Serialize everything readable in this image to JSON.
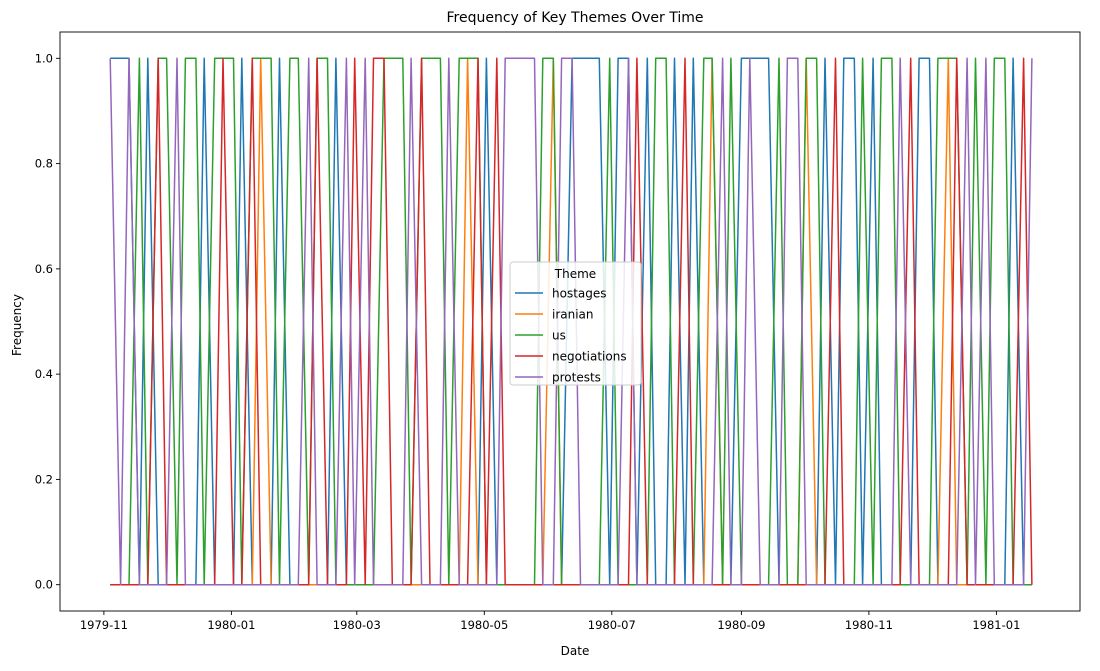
{
  "chart_data": {
    "type": "line",
    "title": "Frequency of Key Themes Over Time",
    "xlabel": "Date",
    "ylabel": "Frequency",
    "xlim": [
      "1979-10-11",
      "1981-02-10"
    ],
    "ylim": [
      -0.05,
      1.05
    ],
    "x_ticks": [
      "1979-11",
      "1980-01",
      "1980-03",
      "1980-05",
      "1980-07",
      "1980-09",
      "1980-11",
      "1981-01"
    ],
    "y_ticks": [
      "0.0",
      "0.2",
      "0.4",
      "0.6",
      "0.8",
      "1.0"
    ],
    "grid": false,
    "legend": {
      "title": "Theme",
      "placement": "center"
    },
    "x": [
      "1979-11-04",
      "1979-11-09",
      "1979-11-13",
      "1979-11-18",
      "1979-11-22",
      "1979-11-27",
      "1979-12-01",
      "1979-12-06",
      "1979-12-10",
      "1979-12-15",
      "1979-12-19",
      "1979-12-24",
      "1979-12-28",
      "1980-01-02",
      "1980-01-06",
      "1980-01-11",
      "1980-01-15",
      "1980-01-20",
      "1980-01-24",
      "1980-01-29",
      "1980-02-02",
      "1980-02-07",
      "1980-02-11",
      "1980-02-16",
      "1980-02-20",
      "1980-02-25",
      "1980-02-29",
      "1980-03-05",
      "1980-03-09",
      "1980-03-14",
      "1980-03-18",
      "1980-03-23",
      "1980-03-27",
      "1980-04-01",
      "1980-04-05",
      "1980-04-10",
      "1980-04-14",
      "1980-04-19",
      "1980-04-23",
      "1980-04-28",
      "1980-05-02",
      "1980-05-07",
      "1980-05-11",
      "1980-05-16",
      "1980-05-20",
      "1980-05-25",
      "1980-05-29",
      "1980-06-03",
      "1980-06-07",
      "1980-06-12",
      "1980-06-16",
      "1980-06-21",
      "1980-06-25",
      "1980-06-30",
      "1980-07-04",
      "1980-07-09",
      "1980-07-13",
      "1980-07-18",
      "1980-07-22",
      "1980-07-27",
      "1980-07-31",
      "1980-08-05",
      "1980-08-09",
      "1980-08-14",
      "1980-08-18",
      "1980-08-23",
      "1980-08-27",
      "1980-09-01",
      "1980-09-05",
      "1980-09-10",
      "1980-09-14",
      "1980-09-19",
      "1980-09-23",
      "1980-09-28",
      "1980-10-02",
      "1980-10-07",
      "1980-10-11",
      "1980-10-16",
      "1980-10-20",
      "1980-10-25",
      "1980-10-29",
      "1980-11-03",
      "1980-11-07",
      "1980-11-12",
      "1980-11-16",
      "1980-11-21",
      "1980-11-25",
      "1980-11-30",
      "1980-12-04",
      "1980-12-09",
      "1980-12-13",
      "1980-12-18",
      "1980-12-22",
      "1980-12-27",
      "1980-12-31",
      "1981-01-05",
      "1981-01-09",
      "1981-01-14",
      "1981-01-18"
    ],
    "series": [
      {
        "name": "hostages",
        "color": "#1f77b4",
        "values": [
          1,
          1,
          1,
          0,
          1,
          0,
          0,
          0,
          0,
          0,
          1,
          0,
          0,
          0,
          1,
          0,
          0,
          0,
          1,
          0,
          0,
          0,
          0,
          0,
          1,
          0,
          0,
          0,
          0,
          0,
          0,
          0,
          0,
          0,
          0,
          0,
          0,
          0,
          0,
          0,
          1,
          0,
          0,
          0,
          0,
          0,
          0,
          0,
          0,
          1,
          1,
          1,
          1,
          0,
          1,
          1,
          0,
          1,
          0,
          0,
          1,
          0,
          1,
          0,
          0,
          0,
          0,
          1,
          1,
          1,
          1,
          0,
          0,
          0,
          0,
          0,
          1,
          0,
          1,
          1,
          0,
          1,
          0,
          0,
          0,
          0,
          1,
          1,
          0,
          0,
          0,
          0,
          0,
          0,
          0,
          0,
          1,
          0,
          0
        ]
      },
      {
        "name": "iranian",
        "color": "#ff7f0e",
        "values": [
          0,
          0,
          0,
          0,
          0,
          0,
          0,
          0,
          0,
          0,
          0,
          0,
          0,
          0,
          0,
          0,
          1,
          0,
          0,
          0,
          0,
          0,
          0,
          0,
          0,
          0,
          0,
          0,
          0,
          0,
          0,
          0,
          0,
          0,
          0,
          0,
          0,
          0,
          1,
          0,
          0,
          0,
          0,
          0,
          0,
          0,
          0,
          1,
          0,
          0,
          0,
          0,
          0,
          0,
          0,
          0,
          0,
          0,
          0,
          0,
          0,
          0,
          0,
          0,
          1,
          0,
          0,
          0,
          0,
          0,
          0,
          0,
          0,
          0,
          1,
          0,
          0,
          0,
          0,
          0,
          0,
          0,
          0,
          0,
          0,
          0,
          0,
          0,
          0,
          1,
          0,
          0,
          0,
          0,
          0,
          0,
          0,
          0,
          0
        ]
      },
      {
        "name": "us",
        "color": "#2ca02c",
        "values": [
          0,
          0,
          0,
          1,
          0,
          1,
          1,
          0,
          1,
          1,
          0,
          1,
          1,
          1,
          0,
          1,
          1,
          1,
          0,
          1,
          1,
          0,
          1,
          1,
          0,
          0,
          0,
          0,
          0,
          1,
          1,
          1,
          0,
          1,
          1,
          1,
          0,
          1,
          1,
          1,
          0,
          0,
          0,
          0,
          0,
          0,
          1,
          1,
          0,
          0,
          0,
          0,
          0,
          1,
          0,
          0,
          0,
          0,
          1,
          1,
          0,
          0,
          0,
          1,
          1,
          0,
          1,
          0,
          0,
          0,
          0,
          1,
          0,
          0,
          1,
          1,
          0,
          0,
          0,
          0,
          1,
          0,
          1,
          1,
          0,
          0,
          0,
          0,
          1,
          1,
          1,
          0,
          1,
          0,
          1,
          1,
          0,
          0,
          0
        ]
      },
      {
        "name": "negotiations",
        "color": "#d62728",
        "values": [
          0,
          0,
          0,
          0,
          0,
          1,
          0,
          0,
          0,
          0,
          0,
          0,
          1,
          0,
          0,
          1,
          0,
          0,
          0,
          0,
          0,
          0,
          1,
          0,
          0,
          0,
          1,
          0,
          1,
          1,
          0,
          0,
          0,
          1,
          0,
          0,
          0,
          0,
          0,
          1,
          0,
          1,
          0,
          0,
          0,
          0,
          0,
          0,
          0,
          0,
          0,
          0,
          0,
          0,
          0,
          0,
          1,
          0,
          0,
          0,
          0,
          1,
          0,
          0,
          0,
          0,
          0,
          0,
          0,
          0,
          0,
          0,
          0,
          0,
          0,
          0,
          0,
          1,
          0,
          0,
          0,
          0,
          0,
          0,
          0,
          1,
          0,
          0,
          0,
          0,
          1,
          0,
          0,
          0,
          0,
          0,
          0,
          1,
          0
        ]
      },
      {
        "name": "protests",
        "color": "#9467bd",
        "values": [
          1,
          0,
          1,
          0,
          0,
          0,
          0,
          1,
          0,
          0,
          0,
          0,
          0,
          0,
          0,
          0,
          0,
          0,
          0,
          0,
          0,
          1,
          0,
          0,
          0,
          1,
          0,
          1,
          0,
          0,
          0,
          0,
          1,
          0,
          0,
          0,
          1,
          0,
          0,
          0,
          0,
          0,
          1,
          1,
          1,
          1,
          0,
          0,
          1,
          1,
          0,
          0,
          0,
          0,
          0,
          1,
          0,
          0,
          0,
          0,
          0,
          0,
          0,
          0,
          0,
          1,
          0,
          0,
          1,
          0,
          0,
          0,
          1,
          1,
          0,
          0,
          0,
          0,
          0,
          0,
          0,
          0,
          0,
          0,
          1,
          0,
          0,
          0,
          0,
          0,
          0,
          1,
          0,
          1,
          0,
          0,
          0,
          0,
          1
        ]
      }
    ]
  }
}
